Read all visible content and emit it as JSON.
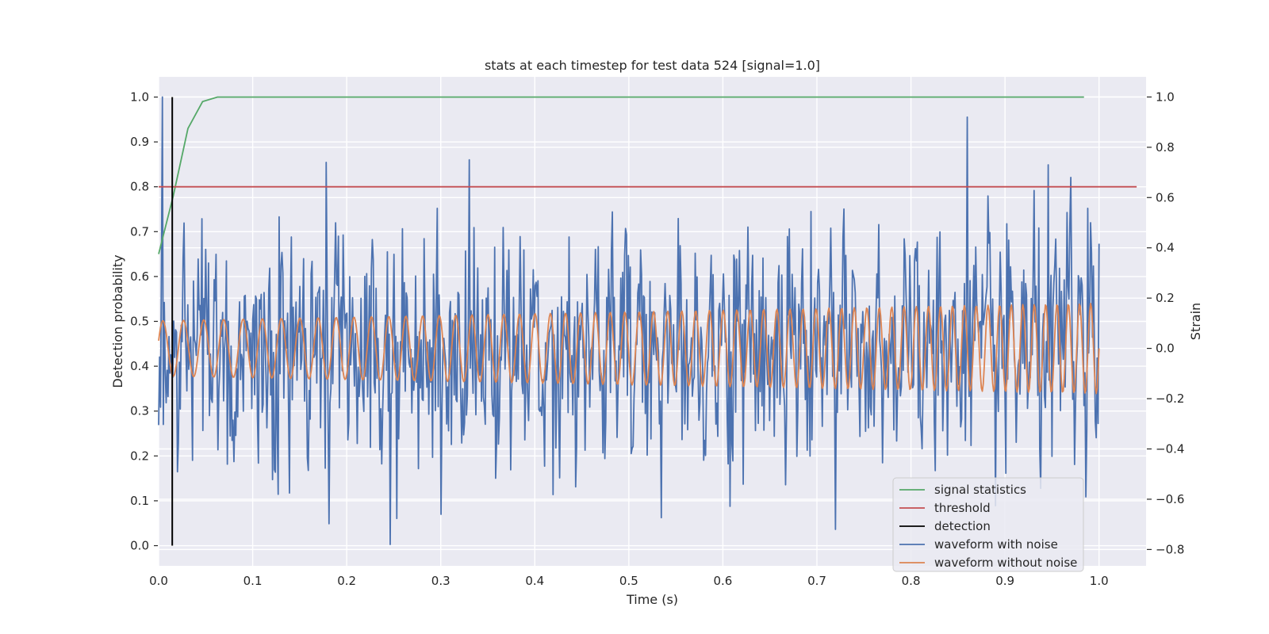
{
  "chart_data": {
    "type": "line",
    "title": "stats at each timestep for test data 524 [signal=1.0]",
    "xlabel": "Time (s)",
    "ylabel": "Detection probability",
    "y2label": "Strain",
    "xlim": [
      0.0,
      1.05
    ],
    "ylim": [
      -0.045,
      1.045
    ],
    "y2lim": [
      -0.865,
      1.08
    ],
    "grid": true,
    "legend_position": "bottom-right",
    "xticks": [
      "0.0",
      "0.1",
      "0.2",
      "0.3",
      "0.4",
      "0.5",
      "0.6",
      "0.7",
      "0.8",
      "0.9",
      "1.0"
    ],
    "xtick_values": [
      0.0,
      0.1,
      0.2,
      0.3,
      0.4,
      0.5,
      0.6,
      0.7,
      0.8,
      0.9,
      1.0
    ],
    "yticks": [
      "0.0",
      "0.1",
      "0.2",
      "0.3",
      "0.4",
      "0.5",
      "0.6",
      "0.7",
      "0.8",
      "0.9",
      "1.0"
    ],
    "ytick_values": [
      0.0,
      0.1,
      0.2,
      0.3,
      0.4,
      0.5,
      0.6,
      0.7,
      0.8,
      0.9,
      1.0
    ],
    "y2ticks": [
      "−0.8",
      "−0.6",
      "−0.4",
      "−0.2",
      "0.0",
      "0.2",
      "0.4",
      "0.6",
      "0.8",
      "1.0"
    ],
    "y2tick_values": [
      -0.8,
      -0.6,
      -0.4,
      -0.2,
      0.0,
      0.2,
      0.4,
      0.6,
      0.8,
      1.0
    ],
    "colors": {
      "plot_bg": "#eaeaf2",
      "grid": "#ffffff",
      "signal_statistics": "#55a868",
      "threshold": "#c44e52",
      "detection": "#000000",
      "waveform_with_noise": "#4c72b0",
      "waveform_without_noise": "#dd8452"
    },
    "series": [
      {
        "name": "signal statistics",
        "axis": "left",
        "x": [
          0.0,
          0.0156,
          0.0312,
          0.0468,
          0.0625,
          0.0781,
          0.1,
          0.2,
          0.3,
          0.4,
          0.5,
          0.6,
          0.7,
          0.8,
          0.9,
          0.984
        ],
        "y": [
          0.65,
          0.78,
          0.93,
          0.99,
          1.0,
          1.0,
          1.0,
          1.0,
          1.0,
          1.0,
          1.0,
          1.0,
          1.0,
          1.0,
          1.0,
          1.0
        ]
      },
      {
        "name": "threshold",
        "axis": "left",
        "x": [
          0.0,
          1.04
        ],
        "y": [
          0.8,
          0.8
        ]
      },
      {
        "name": "detection",
        "axis": "left",
        "x": [
          0.0145,
          0.0145
        ],
        "y": [
          0.0,
          1.0
        ]
      },
      {
        "name": "waveform with noise",
        "axis": "right",
        "x_range": [
          0.0,
          1.0
        ],
        "n_points": 1000,
        "y_range_observed": [
          -0.78,
          1.0
        ],
        "peaks": [
          {
            "x": 0.004,
            "y": 1.0
          },
          {
            "x": 0.178,
            "y": 0.74
          },
          {
            "x": 0.33,
            "y": 0.75
          },
          {
            "x": 0.86,
            "y": 0.92
          },
          {
            "x": 0.946,
            "y": 0.73
          },
          {
            "x": 0.97,
            "y": 0.68
          }
        ],
        "troughs": [
          {
            "x": 0.246,
            "y": -0.78
          },
          {
            "x": 0.3,
            "y": -0.66
          },
          {
            "x": 0.72,
            "y": -0.72
          }
        ]
      },
      {
        "name": "waveform without noise",
        "axis": "right",
        "x_range": [
          0.0,
          1.0
        ],
        "n_points": 1000,
        "amplitude_start": 0.11,
        "amplitude_end": 0.18,
        "frequency_start_hz": 45,
        "frequency_end_hz": 85
      }
    ]
  }
}
